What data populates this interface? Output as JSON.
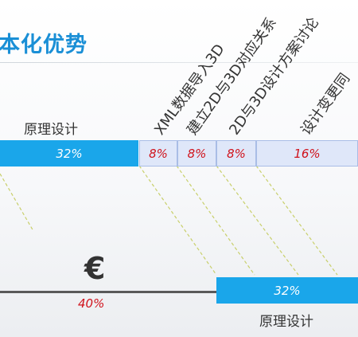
{
  "title": "本化优势",
  "top_label": "原理设计",
  "rotated_labels": [
    "XML数据导入3D",
    "建立2D与3D对应关系",
    "2D与3D设计方案讨论",
    "设计变更同"
  ],
  "top_bar": {
    "segments": [
      {
        "label": "32%"
      },
      {
        "label": "8%"
      },
      {
        "label": "8%"
      },
      {
        "label": "8%"
      },
      {
        "label": "16%"
      }
    ]
  },
  "bottom": {
    "currency_symbol": "€",
    "percent": "40%",
    "segment_label": "32%",
    "label": "原理设计"
  },
  "colors": {
    "accent": "#1aa6ea",
    "title": "#1a8fd6",
    "light_segment": "#dfe7f9",
    "red_text": "#d0121b",
    "dashed": "#c8cf6a"
  }
}
